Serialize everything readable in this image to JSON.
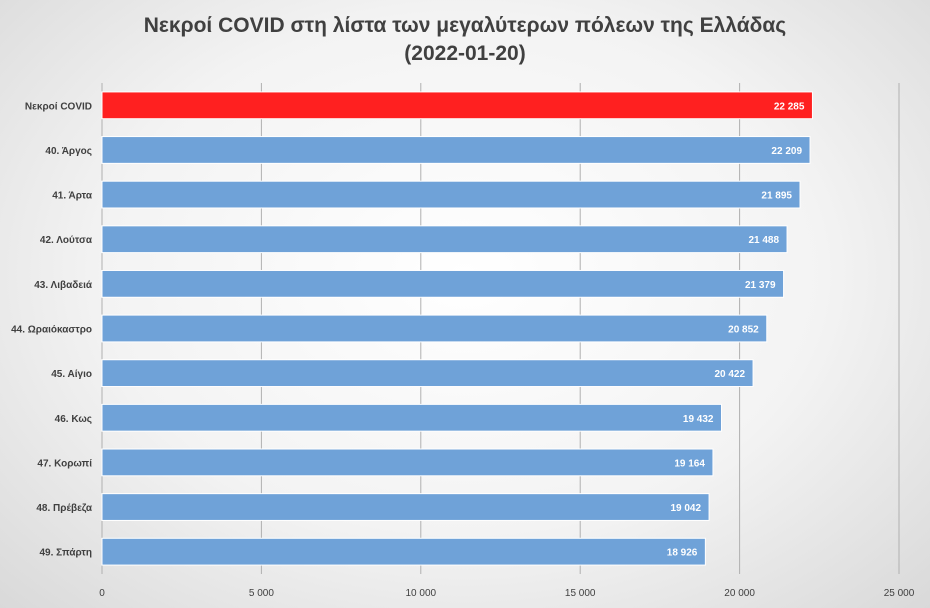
{
  "chart_data": {
    "type": "bar",
    "orientation": "horizontal",
    "title": "Νεκροί COVID στη λίστα των μεγαλύτερων πόλεων της Ελλάδας",
    "subtitle": "(2022-01-20)",
    "categories": [
      "Νεκροί COVID",
      "40. Άργος",
      "41. Άρτα",
      "42. Λούτσα",
      "43. Λιβαδειά",
      "44. Ωραιόκαστρο",
      "45. Αίγιο",
      "46. Κως",
      "47. Κορωπί",
      "48. Πρέβεζα",
      "49. Σπάρτη"
    ],
    "values": [
      22285,
      22209,
      21895,
      21488,
      21379,
      20852,
      20422,
      19432,
      19164,
      19042,
      18926
    ],
    "data_labels": [
      "22 285",
      "22 209",
      "21 895",
      "21 488",
      "21 379",
      "20 852",
      "20 422",
      "19 432",
      "19 164",
      "19 042",
      "18 926"
    ],
    "highlight_index": 0,
    "colors": {
      "highlight": "#ff2020",
      "default": "#6fa2d8"
    },
    "xlim": [
      0,
      25000
    ],
    "xticks": [
      0,
      5000,
      10000,
      15000,
      20000,
      25000
    ],
    "xtick_labels": [
      "0",
      "5 000",
      "10 000",
      "15 000",
      "20 000",
      "25 000"
    ],
    "xlabel": "",
    "ylabel": "",
    "grid": "vertical",
    "legend": "none"
  }
}
